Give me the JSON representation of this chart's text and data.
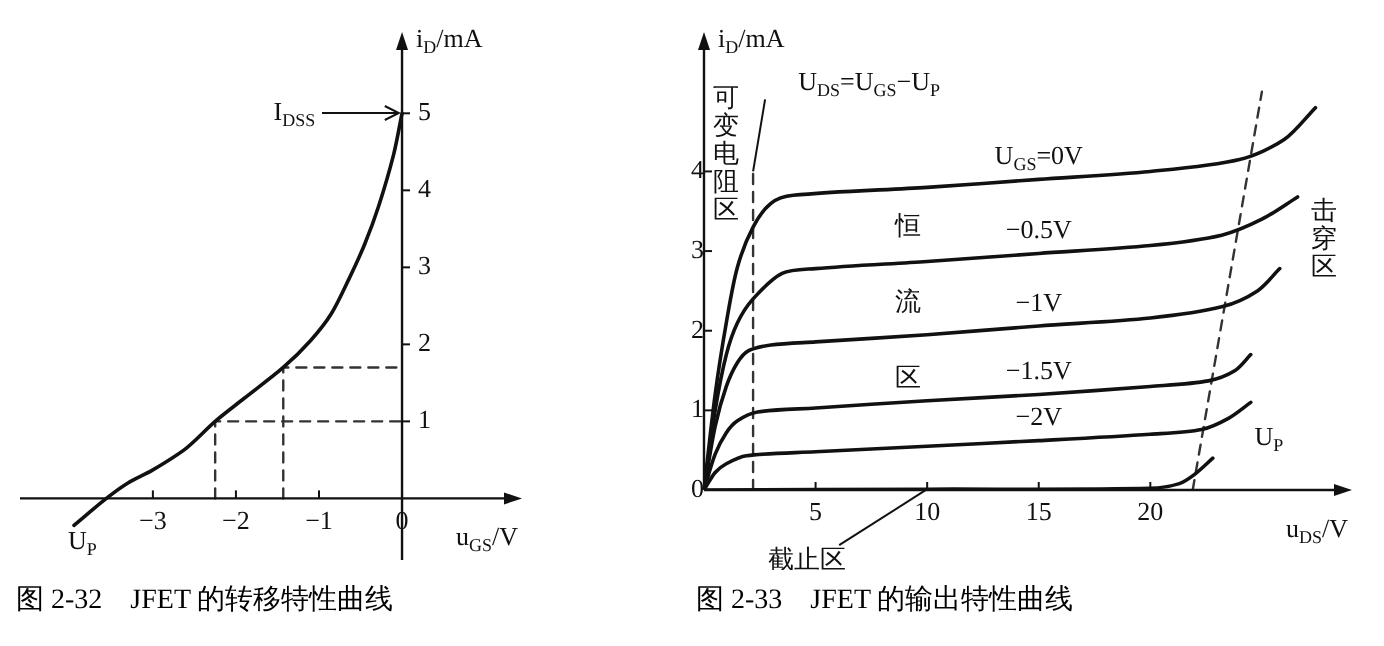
{
  "chart_data": [
    {
      "type": "line",
      "title": "图 2-32　JFET 的转移特性曲线",
      "xlabel": "u$_{GS}$/V",
      "ylabel": "i$_{D}$/mA",
      "marker": "none",
      "xlim": [
        -4.6,
        1.3
      ],
      "ylim": [
        -0.8,
        5.9
      ],
      "xticks": [
        {
          "value": -3,
          "label": "−3"
        },
        {
          "value": -2,
          "label": "−2"
        },
        {
          "value": -1,
          "label": "−1"
        },
        0
      ],
      "yticks": [
        1,
        2,
        3,
        4,
        5
      ],
      "series": [
        {
          "color": "#111111",
          "line_style": "solid",
          "x": [
            -3.95,
            -3.56,
            -3.3,
            -3.0,
            -2.6,
            -2.25,
            -1.9,
            -1.43,
            -1.1,
            -0.85,
            -0.63,
            -0.45,
            -0.28,
            -0.1,
            0
          ],
          "values": [
            -0.35,
            0,
            0.2,
            0.37,
            0.65,
            1,
            1.3,
            1.7,
            2.05,
            2.4,
            2.87,
            3.3,
            3.8,
            4.47,
            5
          ]
        },
        {
          "color": "#333333",
          "line_style": "dashed",
          "x": [
            -2.25,
            -2.25,
            0
          ],
          "values": [
            0,
            1,
            1
          ]
        },
        {
          "color": "#333333",
          "line_style": "dashed",
          "x": [
            -1.43,
            -1.43,
            0
          ],
          "values": [
            0,
            1.7,
            1.7
          ]
        }
      ],
      "annotations": [
        "I$_{DSS}$",
        {
          "text": "U$_{P}$",
          "x": -3.56,
          "y": 0
        }
      ]
    },
    {
      "type": "line",
      "title": "图 2-33　JFET 的输出特性曲线",
      "xlabel": "u$_{DS}$/V",
      "ylabel": "i$_{D}$/mA",
      "marker": "none",
      "xlim": [
        0,
        28.5
      ],
      "ylim": [
        0,
        5.6
      ],
      "xticks": [
        5,
        10,
        15,
        20
      ],
      "yticks": [
        0,
        1,
        2,
        3,
        4
      ],
      "series": [
        {
          "name": "U$_{GS}$=0V",
          "color": "#111111",
          "line_style": "solid",
          "x": [
            0,
            0.5,
            1,
            1.5,
            2.2,
            3,
            4,
            10,
            15,
            20,
            24,
            26,
            27.4
          ],
          "values": [
            0,
            1.2,
            2.1,
            2.8,
            3.3,
            3.6,
            3.7,
            3.8,
            3.9,
            4.0,
            4.15,
            4.4,
            4.8
          ]
        },
        {
          "name": "−0.5V",
          "color": "#111111",
          "line_style": "solid",
          "x": [
            0,
            0.5,
            1,
            1.5,
            2.2,
            3.5,
            5,
            10,
            15,
            20,
            23.2,
            25,
            26.6
          ],
          "values": [
            0,
            1.0,
            1.7,
            2.1,
            2.4,
            2.72,
            2.78,
            2.87,
            2.97,
            3.07,
            3.2,
            3.4,
            3.68
          ]
        },
        {
          "name": "−1V",
          "color": "#111111",
          "line_style": "solid",
          "x": [
            0,
            0.5,
            1,
            1.5,
            2,
            3,
            5,
            10,
            15,
            20,
            23.2,
            24.8,
            25.8
          ],
          "values": [
            0,
            0.8,
            1.3,
            1.6,
            1.75,
            1.82,
            1.86,
            1.95,
            2.06,
            2.16,
            2.3,
            2.5,
            2.78
          ]
        },
        {
          "name": "−1.5V",
          "color": "#111111",
          "line_style": "solid",
          "x": [
            0,
            0.5,
            1,
            1.5,
            2.4,
            5,
            10,
            15,
            20,
            22.6,
            23.8,
            24.5
          ],
          "values": [
            0,
            0.45,
            0.72,
            0.87,
            0.98,
            1.03,
            1.12,
            1.2,
            1.3,
            1.37,
            1.5,
            1.7
          ]
        },
        {
          "name": "−2V",
          "color": "#111111",
          "line_style": "solid",
          "x": [
            0,
            0.5,
            1,
            1.9,
            5,
            10,
            15,
            20,
            22.3,
            23.5,
            24.5
          ],
          "values": [
            0,
            0.22,
            0.33,
            0.43,
            0.48,
            0.55,
            0.62,
            0.7,
            0.76,
            0.9,
            1.1
          ]
        },
        {
          "color": "#111111",
          "line_style": "solid",
          "x": [
            0,
            10,
            20,
            21.3,
            22,
            22.8
          ],
          "values": [
            0,
            0.01,
            0.02,
            0.08,
            0.2,
            0.4
          ]
        },
        {
          "color": "#333333",
          "line_style": "dashed",
          "x": [
            2.2,
            2.2
          ],
          "values": [
            0,
            4.0
          ]
        },
        {
          "color": "#333333",
          "line_style": "dashed",
          "x": [
            21.9,
            25
          ],
          "values": [
            0,
            5.0
          ]
        }
      ],
      "annotations": [
        {
          "text": "U$_{DS}$=U$_{GS}$−U$_{P}$",
          "x": 2.2,
          "y": 4.0
        },
        "可变电阻区",
        "恒流区",
        "击穿区",
        {
          "text": "U$_{P}$",
          "x": 22.8,
          "y": 0.4
        },
        {
          "text": "截止区",
          "x": 10,
          "y": 0.01
        }
      ]
    }
  ]
}
